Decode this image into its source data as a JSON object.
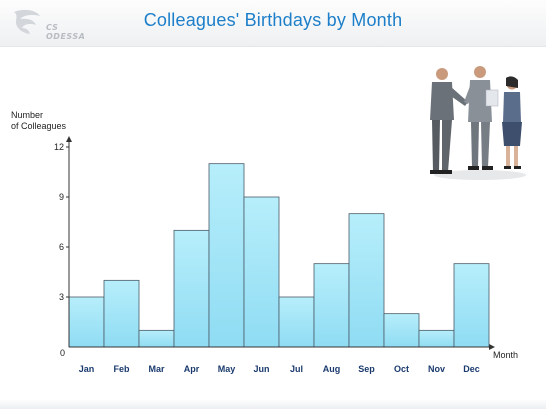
{
  "header": {
    "logo_text": "CS ODESSA",
    "title": "Colleagues' Birthdays by Month"
  },
  "colors": {
    "bar_fill": "#a9e8f8",
    "bar_stroke": "#4a5a68",
    "title": "#1d7fc9",
    "tick_label": "#1a3a6e"
  },
  "illustration": "business-people-handshake",
  "chart_data": {
    "type": "bar",
    "title": "Colleagues' Birthdays by Month",
    "xlabel": "Month",
    "ylabel": "Number\nof Colleagues",
    "origin_label": "0",
    "categories": [
      "Jan",
      "Feb",
      "Mar",
      "Apr",
      "May",
      "Jun",
      "Jul",
      "Aug",
      "Sep",
      "Oct",
      "Nov",
      "Dec"
    ],
    "values": [
      3,
      4,
      1,
      7,
      11,
      9,
      3,
      5,
      8,
      2,
      1,
      5
    ],
    "yticks": [
      3,
      6,
      9,
      12
    ],
    "ylim": [
      0,
      12
    ],
    "grid": false
  }
}
